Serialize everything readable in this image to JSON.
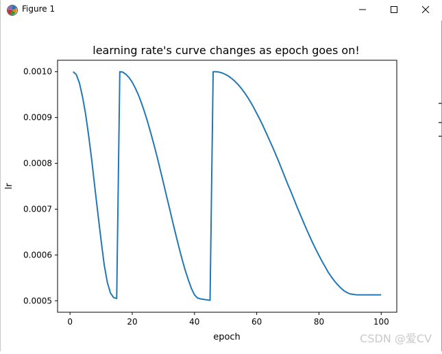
{
  "window": {
    "title": "Figure 1",
    "icon": "matplotlib-logo-icon",
    "controls": [
      "minimize-icon",
      "maximize-icon",
      "close-icon"
    ]
  },
  "watermark": "CSDN @爱CV",
  "colors": {
    "line": "#1f77b4",
    "axes": "#000000",
    "background": "#ffffff",
    "watermark": "#c9c9c9"
  },
  "chart_data": {
    "type": "line",
    "title": "learning rate's curve changes as epoch goes on!",
    "xlabel": "epoch",
    "ylabel": "lr",
    "xlim": [
      -4.0,
      105.0
    ],
    "ylim": [
      0.000475,
      0.001025
    ],
    "xticks": [
      0,
      20,
      40,
      60,
      80,
      100
    ],
    "xtick_labels": [
      "0",
      "20",
      "40",
      "60",
      "80",
      "100"
    ],
    "yticks": [
      0.0005,
      0.0006,
      0.0007,
      0.0008,
      0.0009,
      0.001
    ],
    "ytick_labels": [
      "0.0005",
      "0.0006",
      "0.0007",
      "0.0008",
      "0.0009",
      "0.0010"
    ],
    "grid": false,
    "legend": "none",
    "series": [
      {
        "x": [
          1,
          2,
          3,
          4,
          5,
          6,
          7,
          8,
          9,
          10,
          11,
          12,
          13,
          14,
          15,
          16,
          17,
          18,
          19,
          20,
          21,
          22,
          23,
          24,
          25,
          26,
          27,
          28,
          29,
          30,
          31,
          32,
          33,
          34,
          35,
          36,
          37,
          38,
          39,
          40,
          41,
          42,
          43,
          44,
          45,
          46,
          47,
          48,
          49,
          50,
          51,
          52,
          53,
          54,
          55,
          56,
          57,
          58,
          59,
          60,
          61,
          62,
          63,
          64,
          65,
          66,
          67,
          68,
          69,
          70,
          71,
          72,
          73,
          74,
          75,
          76,
          77,
          78,
          79,
          80,
          81,
          82,
          83,
          84,
          85,
          86,
          87,
          88,
          89,
          90,
          91,
          92,
          93,
          94,
          95,
          96,
          97,
          98,
          99,
          100
        ],
        "y": [
          0.001,
          0.000994,
          0.000976,
          0.000946,
          0.000908,
          0.00086,
          0.000806,
          0.000746,
          0.000688,
          0.000631,
          0.000578,
          0.00054,
          0.000517,
          0.000507,
          0.000505,
          0.001,
          0.000999,
          0.000994,
          0.000987,
          0.000977,
          0.000964,
          0.000949,
          0.000931,
          0.000911,
          0.000889,
          0.000865,
          0.00084,
          0.000814,
          0.000786,
          0.000758,
          0.000729,
          0.000701,
          0.000672,
          0.000644,
          0.000617,
          0.000591,
          0.000567,
          0.000546,
          0.000527,
          0.000513,
          0.000506,
          0.000504,
          0.000503,
          0.000502,
          0.000501,
          0.001,
          0.001,
          0.000999,
          0.000997,
          0.000994,
          0.00099,
          0.000985,
          0.000979,
          0.000972,
          0.000964,
          0.000955,
          0.000945,
          0.000934,
          0.000922,
          0.000909,
          0.000896,
          0.000882,
          0.000867,
          0.000852,
          0.000837,
          0.000821,
          0.000805,
          0.000788,
          0.000771,
          0.000754,
          0.000738,
          0.000721,
          0.000704,
          0.000688,
          0.000672,
          0.000656,
          0.000641,
          0.000626,
          0.000612,
          0.000599,
          0.000586,
          0.000574,
          0.000562,
          0.000552,
          0.000543,
          0.000535,
          0.000528,
          0.000522,
          0.000518,
          0.000515,
          0.000514,
          0.000513,
          0.000513,
          0.000513,
          0.000513,
          0.000513,
          0.000513,
          0.000513,
          0.000513,
          0.000513
        ]
      }
    ]
  }
}
